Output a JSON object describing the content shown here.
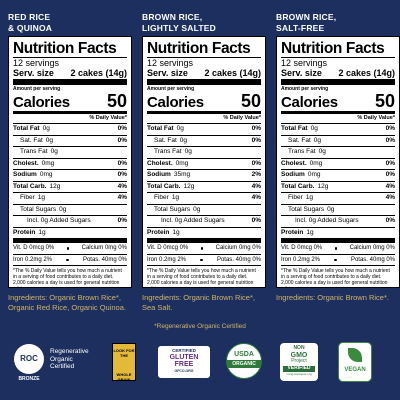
{
  "panels": [
    {
      "header": [
        "RED RICE",
        "& QUINOA"
      ],
      "facts": {
        "title": "Nutrition Facts",
        "servings": "12 servings",
        "serving_size_label": "Serv. size",
        "serving_size": "2 cakes (14g)",
        "amount_label": "Amount per serving",
        "calories_label": "Calories",
        "calories": 50,
        "dv_label": "% Daily Value*",
        "rows": [
          {
            "label": "Total Fat",
            "amount": "0g",
            "dv": "0%",
            "sub": [
              {
                "label": "Sat. Fat",
                "amount": "0g",
                "dv": "0%"
              },
              {
                "label": "Trans Fat",
                "amount": "0g"
              }
            ]
          },
          {
            "label": "Cholest.",
            "amount": "0mg",
            "dv": "0%"
          },
          {
            "label": "Sodium",
            "amount": "0mg",
            "dv": "0%"
          },
          {
            "label": "Total Carb.",
            "amount": "12g",
            "dv": "4%",
            "sub": [
              {
                "label": "Fiber",
                "amount": "1g",
                "dv": "4%"
              },
              {
                "label": "Total Sugars",
                "amount": "0g",
                "sub": [
                  {
                    "label": "Incl. 0g Added Sugars",
                    "dv": "0%"
                  }
                ]
              }
            ]
          },
          {
            "label": "Protein",
            "amount": "1g"
          }
        ],
        "vitamins": [
          [
            "Vit. D 0mcg 0%",
            "Calcium 0mg 0%"
          ],
          [
            "Iron 0.2mg 2%",
            "Potas. 40mg 0%"
          ]
        ],
        "footnote": "*The % Daily Value tells you how much a nutrient in a serving of food contributes to a daily diet. 2,000 calories a day is used for general nutrition advice."
      },
      "ingredients": "Ingredients: Organic Brown Rice*, Organic Red Rice, Organic Quinoa."
    },
    {
      "header": [
        "BROWN RICE,",
        "LIGHTLY SALTED"
      ],
      "facts": {
        "title": "Nutrition Facts",
        "servings": "12 servings",
        "serving_size_label": "Serv. size",
        "serving_size": "2 cakes (14g)",
        "amount_label": "Amount per serving",
        "calories_label": "Calories",
        "calories": 50,
        "dv_label": "% Daily Value*",
        "rows": [
          {
            "label": "Total Fat",
            "amount": "0g",
            "dv": "0%",
            "sub": [
              {
                "label": "Sat. Fat",
                "amount": "0g",
                "dv": "0%"
              },
              {
                "label": "Trans Fat",
                "amount": "0g"
              }
            ]
          },
          {
            "label": "Cholest.",
            "amount": "0mg",
            "dv": "0%"
          },
          {
            "label": "Sodium",
            "amount": "35mg",
            "dv": "2%"
          },
          {
            "label": "Total Carb.",
            "amount": "12g",
            "dv": "4%",
            "sub": [
              {
                "label": "Fiber",
                "amount": "1g",
                "dv": "4%"
              },
              {
                "label": "Total Sugars",
                "amount": "0g",
                "sub": [
                  {
                    "label": "Incl. 0g Added Sugars",
                    "dv": "0%"
                  }
                ]
              }
            ]
          },
          {
            "label": "Protein",
            "amount": "1g"
          }
        ],
        "vitamins": [
          [
            "Vit. D 0mcg 0%",
            "Calcium 0mg 0%"
          ],
          [
            "Iron 0.2mg 2%",
            "Potas. 40mg 0%"
          ]
        ],
        "footnote": "*The % Daily Value tells you how much a nutrient in a serving of food contributes to a daily diet. 2,000 calories a day is used for general nutrition advice."
      },
      "ingredients": "Ingredients: Organic Brown Rice*, Sea Salt."
    },
    {
      "header": [
        "BROWN RICE,",
        "SALT-FREE"
      ],
      "facts": {
        "title": "Nutrition Facts",
        "servings": "12 servings",
        "serving_size_label": "Serv. size",
        "serving_size": "2 cakes (14g)",
        "amount_label": "Amount per serving",
        "calories_label": "Calories",
        "calories": 50,
        "dv_label": "% Daily Value*",
        "rows": [
          {
            "label": "Total Fat",
            "amount": "0g",
            "dv": "0%",
            "sub": [
              {
                "label": "Sat. Fat",
                "amount": "0g",
                "dv": "0%"
              },
              {
                "label": "Trans Fat",
                "amount": "0g"
              }
            ]
          },
          {
            "label": "Cholest.",
            "amount": "0mg",
            "dv": "0%"
          },
          {
            "label": "Sodium",
            "amount": "0mg",
            "dv": "0%"
          },
          {
            "label": "Total Carb.",
            "amount": "12g",
            "dv": "4%",
            "sub": [
              {
                "label": "Fiber",
                "amount": "1g",
                "dv": "4%"
              },
              {
                "label": "Total Sugars",
                "amount": "0g",
                "sub": [
                  {
                    "label": "Incl. 0g Added Sugars",
                    "dv": "0%"
                  }
                ]
              }
            ]
          },
          {
            "label": "Protein",
            "amount": "1g"
          }
        ],
        "vitamins": [
          [
            "Vit. D 0mcg 0%",
            "Calcium 0mg 0%"
          ],
          [
            "Iron 0.2mg 2%",
            "Potas. 40mg 0%"
          ]
        ],
        "footnote": "*The % Daily Value tells you how much a nutrient in a serving of food contributes to a daily diet. 2,000 calories a day is used for general nutrition advice."
      },
      "ingredients": "Ingredients: Organic Brown Rice*."
    }
  ],
  "certification_note": "*Regenerative Organic Certified",
  "logos": {
    "roc": {
      "mark": "ROC",
      "lines": [
        "Regenerative",
        "Organic",
        "Certified"
      ],
      "level": "BRONZE"
    },
    "whole_grain": [
      "LOOK FOR THE",
      "WHOLE GRAIN"
    ],
    "gluten_free": [
      "CERTIFIED",
      "GLUTEN",
      "FREE",
      "GFCO.ORG"
    ],
    "usda": [
      "USDA",
      "ORGANIC"
    ],
    "non_gmo": [
      "NON",
      "GMO",
      "Project",
      "VERIFIED",
      "nongmoproject.org"
    ],
    "vegan": [
      "VEGAN"
    ]
  }
}
